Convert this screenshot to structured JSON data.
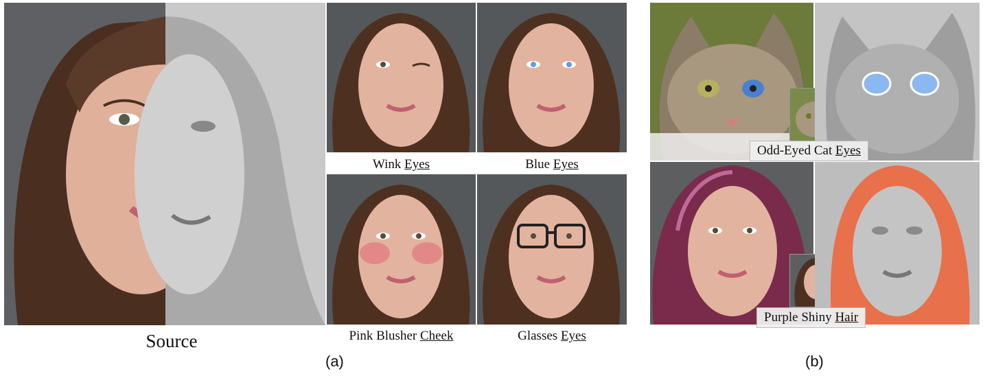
{
  "figure": {
    "left_group": {
      "source_caption": "Source",
      "sublabel": "(a)",
      "edits": [
        {
          "prefix": "Wink ",
          "region": "Eyes"
        },
        {
          "prefix": "Blue ",
          "region": "Eyes"
        },
        {
          "prefix": "Pink Blusher ",
          "region": "Cheek"
        },
        {
          "prefix": "Glasses ",
          "region": "Eyes"
        }
      ]
    },
    "right_group": {
      "sublabel": "(b)",
      "cat_caption": {
        "prefix": "Odd-Eyed Cat ",
        "region": "Eyes"
      },
      "hair_caption": {
        "prefix": "Purple Shiny ",
        "region": "Hair"
      }
    }
  },
  "colors": {
    "skin": "#e2b49f",
    "hair": "#5a3a28",
    "background_photo": "#6c6e70",
    "mesh_gray": "#b9b9b9",
    "blue_eyes": "#5aa0e0",
    "blush": "#e46a7a",
    "purple_hair": "#7a2a4a",
    "orange_hair": "#e8704a"
  }
}
